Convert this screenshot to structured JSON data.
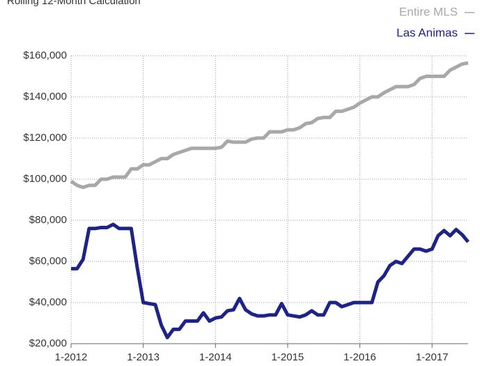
{
  "chart_data": {
    "type": "line",
    "title": "Rolling 12-Month Calculation",
    "categories": [
      "1-2012",
      null,
      null,
      null,
      null,
      null,
      null,
      null,
      null,
      null,
      null,
      null,
      "1-2013",
      null,
      null,
      null,
      null,
      null,
      null,
      null,
      null,
      null,
      null,
      null,
      "1-2014",
      null,
      null,
      null,
      null,
      null,
      null,
      null,
      null,
      null,
      null,
      null,
      "1-2015",
      null,
      null,
      null,
      null,
      null,
      null,
      null,
      null,
      null,
      null,
      null,
      "1-2016",
      null,
      null,
      null,
      null,
      null,
      null,
      null,
      null,
      null,
      null,
      null,
      "1-2017",
      null,
      null,
      null,
      null,
      null,
      null
    ],
    "series": [
      {
        "name": "Entire MLS",
        "color": "#a8a8a8",
        "values": [
          99000,
          97000,
          96000,
          97000,
          97000,
          100000,
          100000,
          101000,
          101000,
          101000,
          105000,
          105000,
          107000,
          107000,
          108500,
          110000,
          110000,
          112000,
          113000,
          114000,
          115000,
          115000,
          115000,
          115000,
          115000,
          115500,
          118500,
          118000,
          118000,
          118000,
          119500,
          120000,
          120000,
          123000,
          123000,
          123000,
          124000,
          124000,
          125000,
          127000,
          127500,
          129500,
          130000,
          130000,
          133000,
          133000,
          134000,
          135000,
          137000,
          138500,
          140000,
          140000,
          142000,
          143500,
          145000,
          145000,
          145000,
          146000,
          149000,
          150000,
          150000,
          150000,
          150000,
          153000,
          154500,
          156000,
          156500
        ]
      },
      {
        "name": "Las Animas",
        "color": "#1f2383",
        "values": [
          56500,
          56500,
          61000,
          76000,
          76000,
          76500,
          76500,
          78000,
          76000,
          76000,
          76000,
          57000,
          40000,
          39500,
          39000,
          29000,
          23000,
          27000,
          27000,
          31000,
          31000,
          31000,
          35000,
          31000,
          32500,
          33000,
          36000,
          36500,
          42000,
          36500,
          34500,
          33500,
          33500,
          34000,
          34000,
          39500,
          34000,
          33500,
          33000,
          34000,
          36000,
          34000,
          34000,
          40000,
          40000,
          38000,
          39000,
          40000,
          40000,
          40000,
          40000,
          50000,
          53000,
          58000,
          60000,
          59000,
          62500,
          66000,
          66000,
          65000,
          66000,
          72500,
          75000,
          72500,
          75500,
          73000,
          69500
        ]
      }
    ],
    "ylim": [
      20000,
      160000
    ],
    "yticks": [
      {
        "value": 20000,
        "label": "$20,000"
      },
      {
        "value": 40000,
        "label": "$40,000"
      },
      {
        "value": 60000,
        "label": "$60,000"
      },
      {
        "value": 80000,
        "label": "$80,000"
      },
      {
        "value": 100000,
        "label": "$100,000"
      },
      {
        "value": 120000,
        "label": "$120,000"
      },
      {
        "value": 140000,
        "label": "$140,000"
      },
      {
        "value": 160000,
        "label": "$160,000"
      }
    ],
    "grid": true
  }
}
